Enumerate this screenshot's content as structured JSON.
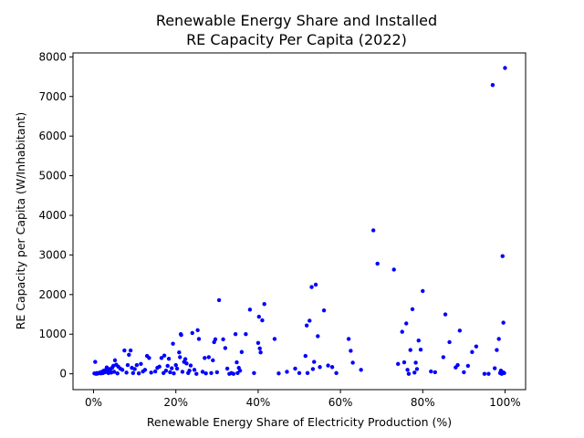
{
  "chart_data": {
    "type": "scatter",
    "title_line1": "Renewable Energy Share and Installed",
    "title_line2": "RE Capacity Per Capita (2022)",
    "xlabel": "Renewable Energy Share of Electricity Production (%)",
    "ylabel": "RE Capacity per Capita (W/Inhabitant)",
    "xlim": [
      -5,
      105
    ],
    "ylim": [
      -400,
      8100
    ],
    "x_ticks": [
      0,
      20,
      40,
      60,
      80,
      100
    ],
    "x_tick_labels": [
      "0%",
      "20%",
      "40%",
      "60%",
      "80%",
      "100%"
    ],
    "y_ticks": [
      0,
      1000,
      2000,
      3000,
      4000,
      5000,
      6000,
      7000,
      8000
    ],
    "y_tick_labels": [
      "0",
      "1000",
      "2000",
      "3000",
      "4000",
      "5000",
      "6000",
      "7000",
      "8000"
    ],
    "grid": false,
    "point_color": "#0000ff",
    "points": [
      [
        0.2,
        10
      ],
      [
        0.4,
        300
      ],
      [
        0.6,
        0
      ],
      [
        0.8,
        20
      ],
      [
        1.0,
        5
      ],
      [
        1.2,
        15
      ],
      [
        1.5,
        30
      ],
      [
        1.8,
        10
      ],
      [
        2.0,
        50
      ],
      [
        2.3,
        20
      ],
      [
        2.5,
        80
      ],
      [
        2.8,
        40
      ],
      [
        3.0,
        100
      ],
      [
        3.2,
        160
      ],
      [
        3.4,
        60
      ],
      [
        3.6,
        20
      ],
      [
        3.8,
        120
      ],
      [
        4.0,
        90
      ],
      [
        4.3,
        30
      ],
      [
        4.5,
        150
      ],
      [
        4.8,
        200
      ],
      [
        5.0,
        50
      ],
      [
        5.2,
        340
      ],
      [
        5.5,
        230
      ],
      [
        5.8,
        10
      ],
      [
        6.0,
        180
      ],
      [
        6.5,
        130
      ],
      [
        7.0,
        100
      ],
      [
        7.5,
        590
      ],
      [
        8.0,
        30
      ],
      [
        8.3,
        220
      ],
      [
        8.6,
        480
      ],
      [
        9.0,
        590
      ],
      [
        9.3,
        150
      ],
      [
        9.6,
        20
      ],
      [
        10.0,
        120
      ],
      [
        10.5,
        220
      ],
      [
        11.0,
        10
      ],
      [
        11.5,
        250
      ],
      [
        12.0,
        60
      ],
      [
        12.5,
        100
      ],
      [
        13.0,
        450
      ],
      [
        13.5,
        400
      ],
      [
        14.0,
        30
      ],
      [
        15.0,
        60
      ],
      [
        15.5,
        150
      ],
      [
        16.0,
        180
      ],
      [
        16.5,
        400
      ],
      [
        17.0,
        20
      ],
      [
        17.2,
        460
      ],
      [
        17.6,
        80
      ],
      [
        18.0,
        200
      ],
      [
        18.3,
        380
      ],
      [
        18.6,
        40
      ],
      [
        19.0,
        140
      ],
      [
        19.3,
        760
      ],
      [
        19.5,
        10
      ],
      [
        20.0,
        220
      ],
      [
        20.3,
        130
      ],
      [
        20.8,
        540
      ],
      [
        21.0,
        420
      ],
      [
        21.2,
        1000
      ],
      [
        21.3,
        980
      ],
      [
        21.6,
        50
      ],
      [
        22.0,
        300
      ],
      [
        22.3,
        370
      ],
      [
        22.6,
        260
      ],
      [
        23.0,
        20
      ],
      [
        23.3,
        80
      ],
      [
        23.6,
        210
      ],
      [
        24.0,
        1030
      ],
      [
        24.5,
        100
      ],
      [
        25.0,
        0
      ],
      [
        25.3,
        1100
      ],
      [
        25.6,
        880
      ],
      [
        26.5,
        50
      ],
      [
        27.0,
        400
      ],
      [
        27.3,
        10
      ],
      [
        28.0,
        420
      ],
      [
        28.6,
        20
      ],
      [
        29.0,
        340
      ],
      [
        29.3,
        800
      ],
      [
        29.6,
        870
      ],
      [
        30.0,
        40
      ],
      [
        30.5,
        1860
      ],
      [
        31.5,
        870
      ],
      [
        32.0,
        650
      ],
      [
        32.5,
        130
      ],
      [
        33.0,
        0
      ],
      [
        33.5,
        20
      ],
      [
        34.0,
        0
      ],
      [
        34.5,
        1000
      ],
      [
        34.8,
        290
      ],
      [
        35.0,
        20
      ],
      [
        35.3,
        150
      ],
      [
        35.6,
        80
      ],
      [
        36.0,
        550
      ],
      [
        37.0,
        1000
      ],
      [
        38.0,
        1620
      ],
      [
        39.0,
        20
      ],
      [
        40.0,
        780
      ],
      [
        40.2,
        1440
      ],
      [
        40.4,
        640
      ],
      [
        40.6,
        540
      ],
      [
        41.0,
        1350
      ],
      [
        41.5,
        1760
      ],
      [
        44.0,
        880
      ],
      [
        45.0,
        10
      ],
      [
        47.0,
        50
      ],
      [
        49.0,
        130
      ],
      [
        50.0,
        20
      ],
      [
        51.5,
        450
      ],
      [
        51.8,
        1220
      ],
      [
        52.0,
        20
      ],
      [
        52.5,
        1340
      ],
      [
        53.0,
        2190
      ],
      [
        53.3,
        120
      ],
      [
        53.6,
        300
      ],
      [
        54.0,
        2250
      ],
      [
        54.5,
        950
      ],
      [
        55.0,
        170
      ],
      [
        56.0,
        1600
      ],
      [
        57.0,
        210
      ],
      [
        58.0,
        170
      ],
      [
        59.0,
        20
      ],
      [
        62.0,
        880
      ],
      [
        62.5,
        580
      ],
      [
        63.0,
        280
      ],
      [
        65.0,
        100
      ],
      [
        68.0,
        3620
      ],
      [
        69.0,
        2780
      ],
      [
        73.0,
        2630
      ],
      [
        74.0,
        250
      ],
      [
        75.0,
        1060
      ],
      [
        75.5,
        290
      ],
      [
        76.0,
        1270
      ],
      [
        76.3,
        100
      ],
      [
        76.6,
        0
      ],
      [
        77.0,
        600
      ],
      [
        77.5,
        1630
      ],
      [
        78.0,
        30
      ],
      [
        78.3,
        280
      ],
      [
        78.6,
        120
      ],
      [
        79.0,
        840
      ],
      [
        79.5,
        610
      ],
      [
        80.0,
        2090
      ],
      [
        82.0,
        60
      ],
      [
        83.0,
        40
      ],
      [
        85.0,
        420
      ],
      [
        85.5,
        1500
      ],
      [
        86.5,
        800
      ],
      [
        88.0,
        160
      ],
      [
        88.5,
        220
      ],
      [
        89.0,
        1090
      ],
      [
        90.0,
        40
      ],
      [
        91.0,
        200
      ],
      [
        92.0,
        550
      ],
      [
        93.0,
        690
      ],
      [
        95.0,
        0
      ],
      [
        96.0,
        0
      ],
      [
        97.0,
        7290
      ],
      [
        97.5,
        140
      ],
      [
        98.0,
        600
      ],
      [
        98.5,
        880
      ],
      [
        98.8,
        20
      ],
      [
        99.0,
        80
      ],
      [
        99.2,
        0
      ],
      [
        99.4,
        2970
      ],
      [
        99.5,
        40
      ],
      [
        99.6,
        1290
      ],
      [
        99.8,
        20
      ],
      [
        100.0,
        7720
      ]
    ]
  }
}
